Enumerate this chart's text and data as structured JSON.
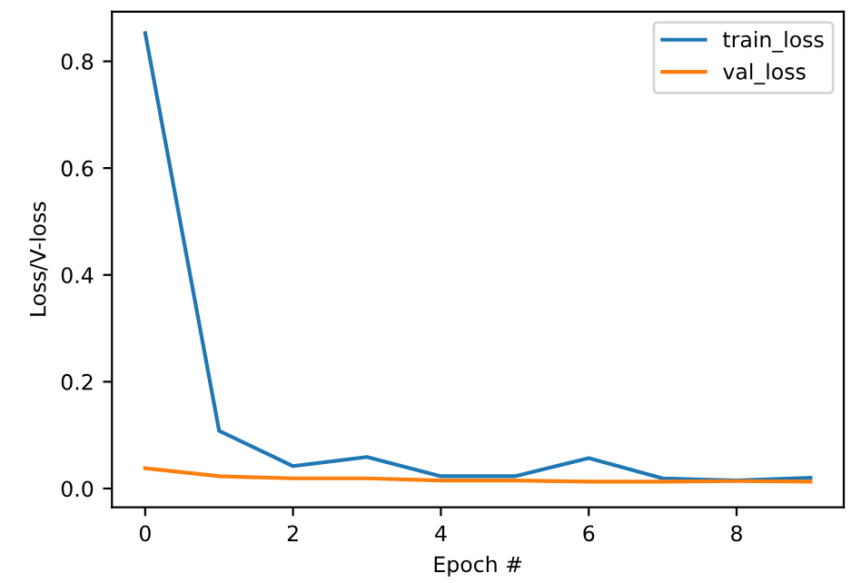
{
  "chart_data": {
    "type": "line",
    "xlabel": "Epoch #",
    "ylabel": "Loss/V-loss",
    "x": [
      0,
      1,
      2,
      3,
      4,
      5,
      6,
      7,
      8,
      9
    ],
    "series": [
      {
        "name": "train_loss",
        "color": "#1f77b4",
        "values": [
          0.853,
          0.108,
          0.042,
          0.059,
          0.023,
          0.023,
          0.057,
          0.019,
          0.015,
          0.02
        ]
      },
      {
        "name": "val_loss",
        "color": "#ff7f0e",
        "values": [
          0.038,
          0.023,
          0.019,
          0.019,
          0.015,
          0.015,
          0.013,
          0.013,
          0.014,
          0.013
        ]
      }
    ],
    "xlim": [
      -0.45,
      9.45
    ],
    "ylim": [
      -0.035,
      0.893
    ],
    "xticks": [
      0,
      2,
      4,
      6,
      8
    ],
    "yticks": [
      {
        "value": 0,
        "label": "0.0"
      },
      0.2,
      0.4,
      0.6,
      0.8
    ],
    "legend": "top right",
    "grid": false
  }
}
